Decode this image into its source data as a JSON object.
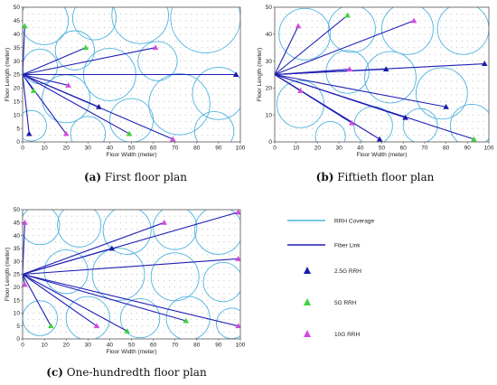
{
  "colors": {
    "coverage": "#4fb3df",
    "fiber": "#1f1fb4",
    "rrh_2_5g": "#1a1aa6",
    "rrh_5g": "#3fd13f",
    "rrh_10g": "#d24ae0",
    "grid_dot": "#9a9a9a"
  },
  "legend": {
    "coverage": "RRH Coverage",
    "fiber": "Fiber Link",
    "rrh_2_5g": "2.5G RRH",
    "rrh_5g": "5G RRH",
    "rrh_10g": "10G RRH"
  },
  "chart_data": [
    {
      "type": "scatter",
      "caption_letter": "(a)",
      "caption_text": "First floor plan",
      "xlabel": "Floor Width (meter)",
      "ylabel": "Floor Length (meter)",
      "xlim": [
        0,
        100
      ],
      "ylim": [
        0,
        50
      ],
      "xticks": [
        0,
        10,
        20,
        30,
        40,
        50,
        60,
        70,
        80,
        90,
        100
      ],
      "yticks": [
        0,
        5,
        10,
        15,
        20,
        25,
        30,
        35,
        40,
        45,
        50
      ],
      "hub": [
        0,
        25
      ],
      "rrh": [
        {
          "x": 98,
          "y": 25,
          "cls": "2.5G"
        },
        {
          "x": 3,
          "y": 3,
          "cls": "2.5G"
        },
        {
          "x": 35,
          "y": 13,
          "cls": "2.5G"
        },
        {
          "x": 1,
          "y": 43,
          "cls": "5G"
        },
        {
          "x": 29,
          "y": 35,
          "cls": "5G"
        },
        {
          "x": 5,
          "y": 19,
          "cls": "5G"
        },
        {
          "x": 49,
          "y": 3,
          "cls": "5G"
        },
        {
          "x": 61,
          "y": 35,
          "cls": "10G"
        },
        {
          "x": 21,
          "y": 21,
          "cls": "10G"
        },
        {
          "x": 20,
          "y": 3,
          "cls": "10G"
        },
        {
          "x": 69,
          "y": 1,
          "cls": "10G"
        }
      ],
      "coverage_circles": [
        {
          "x": 10,
          "y": 45,
          "r": 11
        },
        {
          "x": 33,
          "y": 46,
          "r": 10
        },
        {
          "x": 54,
          "y": 47,
          "r": 13
        },
        {
          "x": 84,
          "y": 46,
          "r": 16
        },
        {
          "x": 24,
          "y": 34,
          "r": 9
        },
        {
          "x": 40,
          "y": 25,
          "r": 12
        },
        {
          "x": 8,
          "y": 28,
          "r": 8
        },
        {
          "x": 20,
          "y": 16,
          "r": 11
        },
        {
          "x": 50,
          "y": 8,
          "r": 10
        },
        {
          "x": 72,
          "y": 14,
          "r": 14
        },
        {
          "x": 90,
          "y": 18,
          "r": 12
        },
        {
          "x": 4,
          "y": 6,
          "r": 7
        },
        {
          "x": 88,
          "y": 4,
          "r": 9
        },
        {
          "x": 30,
          "y": 3,
          "r": 8
        },
        {
          "x": 62,
          "y": 30,
          "r": 9
        }
      ]
    },
    {
      "type": "scatter",
      "caption_letter": "(b)",
      "caption_text": "Fiftieth floor plan",
      "xlabel": "Floor Width (meter)",
      "ylabel": "Floor Length (meter)",
      "xlim": [
        0,
        100
      ],
      "ylim": [
        0,
        50
      ],
      "xticks": [
        0,
        10,
        20,
        30,
        40,
        50,
        60,
        70,
        80,
        90,
        100
      ],
      "yticks": [
        0,
        10,
        20,
        30,
        40,
        50
      ],
      "hub": [
        0,
        25
      ],
      "rrh": [
        {
          "x": 52,
          "y": 27,
          "cls": "2.5G"
        },
        {
          "x": 98,
          "y": 29,
          "cls": "2.5G"
        },
        {
          "x": 61,
          "y": 9,
          "cls": "2.5G"
        },
        {
          "x": 80,
          "y": 13,
          "cls": "2.5G"
        },
        {
          "x": 49,
          "y": 1,
          "cls": "2.5G"
        },
        {
          "x": 34,
          "y": 47,
          "cls": "5G"
        },
        {
          "x": 93,
          "y": 1,
          "cls": "5G"
        },
        {
          "x": 11,
          "y": 43,
          "cls": "10G"
        },
        {
          "x": 65,
          "y": 45,
          "cls": "10G"
        },
        {
          "x": 35,
          "y": 27,
          "cls": "10G"
        },
        {
          "x": 12,
          "y": 19,
          "cls": "10G"
        },
        {
          "x": 36,
          "y": 7,
          "cls": "10G"
        }
      ],
      "coverage_circles": [
        {
          "x": 14,
          "y": 40,
          "r": 12
        },
        {
          "x": 36,
          "y": 42,
          "r": 11
        },
        {
          "x": 62,
          "y": 42,
          "r": 12
        },
        {
          "x": 88,
          "y": 42,
          "r": 12
        },
        {
          "x": 34,
          "y": 26,
          "r": 10
        },
        {
          "x": 54,
          "y": 24,
          "r": 12
        },
        {
          "x": 78,
          "y": 18,
          "r": 12
        },
        {
          "x": 12,
          "y": 14,
          "r": 11
        },
        {
          "x": 46,
          "y": 6,
          "r": 9
        },
        {
          "x": 92,
          "y": 6,
          "r": 10
        },
        {
          "x": 26,
          "y": 2,
          "r": 7
        },
        {
          "x": 68,
          "y": 6,
          "r": 8
        }
      ]
    },
    {
      "type": "scatter",
      "caption_letter": "(c)",
      "caption_text": "One-hundredth floor plan",
      "xlabel": "Floor Width (meter)",
      "ylabel": "Floor Length (meter)",
      "xlim": [
        0,
        100
      ],
      "ylim": [
        0,
        50
      ],
      "xticks": [
        0,
        10,
        20,
        30,
        40,
        50,
        60,
        70,
        80,
        90,
        100
      ],
      "yticks": [
        0,
        5,
        10,
        15,
        20,
        25,
        30,
        35,
        40,
        45,
        50
      ],
      "hub": [
        0,
        25
      ],
      "rrh": [
        {
          "x": 41,
          "y": 35,
          "cls": "2.5G"
        },
        {
          "x": 13,
          "y": 5,
          "cls": "5G"
        },
        {
          "x": 48,
          "y": 3,
          "cls": "5G"
        },
        {
          "x": 75,
          "y": 7,
          "cls": "5G"
        },
        {
          "x": 1,
          "y": 45,
          "cls": "10G"
        },
        {
          "x": 65,
          "y": 45,
          "cls": "10G"
        },
        {
          "x": 99,
          "y": 49,
          "cls": "10G"
        },
        {
          "x": 99,
          "y": 31,
          "cls": "10G"
        },
        {
          "x": 1,
          "y": 21,
          "cls": "10G"
        },
        {
          "x": 34,
          "y": 5,
          "cls": "10G"
        },
        {
          "x": 99,
          "y": 5,
          "cls": "10G"
        }
      ],
      "coverage_circles": [
        {
          "x": 8,
          "y": 44,
          "r": 9
        },
        {
          "x": 26,
          "y": 44,
          "r": 10
        },
        {
          "x": 48,
          "y": 42,
          "r": 11
        },
        {
          "x": 70,
          "y": 43,
          "r": 10
        },
        {
          "x": 90,
          "y": 42,
          "r": 11
        },
        {
          "x": 20,
          "y": 26,
          "r": 10
        },
        {
          "x": 44,
          "y": 25,
          "r": 12
        },
        {
          "x": 70,
          "y": 24,
          "r": 11
        },
        {
          "x": 92,
          "y": 22,
          "r": 9
        },
        {
          "x": 8,
          "y": 8,
          "r": 8
        },
        {
          "x": 30,
          "y": 8,
          "r": 10
        },
        {
          "x": 54,
          "y": 8,
          "r": 9
        },
        {
          "x": 76,
          "y": 8,
          "r": 10
        },
        {
          "x": 96,
          "y": 6,
          "r": 7
        }
      ]
    }
  ]
}
